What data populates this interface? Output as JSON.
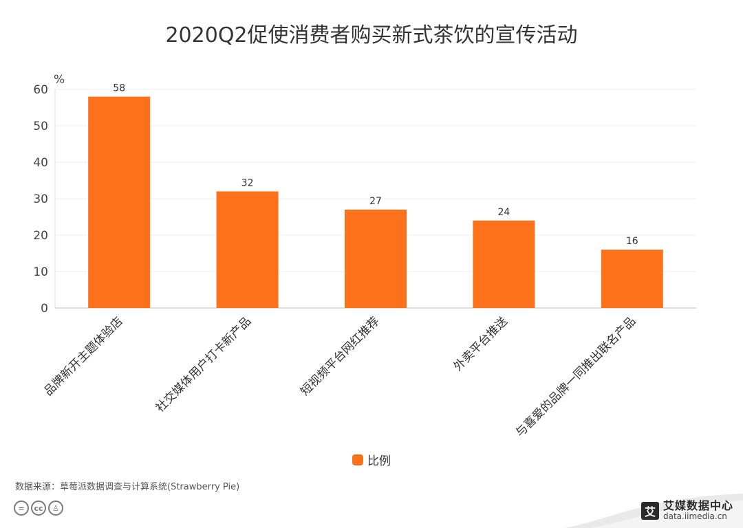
{
  "chart_data": {
    "type": "bar",
    "title": "2020Q2促使消费者购买新式茶饮的宣传活动",
    "ylabel": "%",
    "xlabel": "",
    "ylim": [
      0,
      60
    ],
    "yticks": [
      0,
      10,
      20,
      30,
      40,
      50,
      60
    ],
    "grid": true,
    "legend_position": "bottom",
    "categories": [
      "品牌新开主题体验店",
      "社交媒体用户打卡新产品",
      "短视频平台网红推荐",
      "外卖平台推送",
      "与喜爱的品牌一同推出联名产品"
    ],
    "series": [
      {
        "name": "比例",
        "values": [
          58,
          32,
          27,
          24,
          16
        ],
        "color": "#FD711B"
      }
    ]
  },
  "footer": {
    "source": "数据来源：草莓派数据调查与计算系统(Strawberry Pie)",
    "brand_name": "艾媒数据中心",
    "brand_url": "data.iimedia.cn",
    "brand_logo": "艾"
  },
  "icons": [
    "cc-equal-icon",
    "cc-icon",
    "cc-person-icon"
  ]
}
